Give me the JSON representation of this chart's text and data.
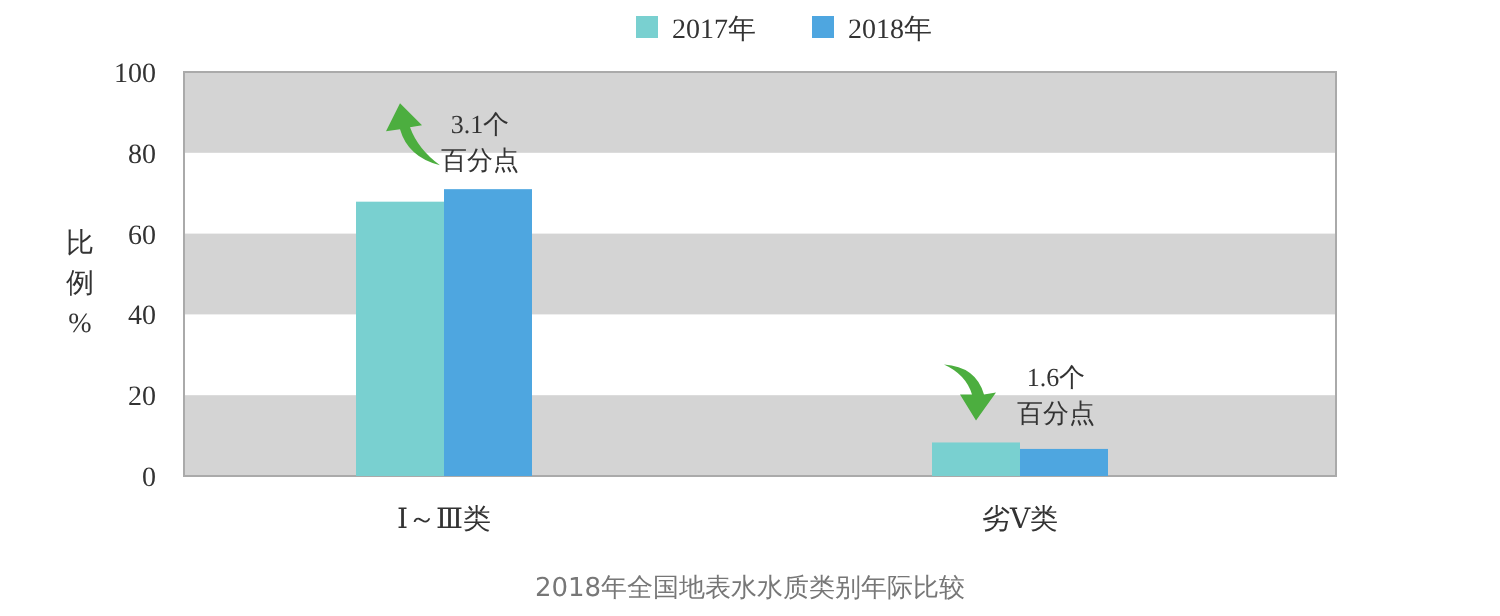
{
  "chart_data": {
    "type": "bar",
    "ylabel": "比例%",
    "categories": [
      "Ⅰ～Ⅲ类",
      "劣Ⅴ类"
    ],
    "series": [
      {
        "name": "2017年",
        "color": "#79d0d0",
        "values": [
          67.9,
          8.3
        ]
      },
      {
        "name": "2018年",
        "color": "#4ea6e0",
        "values": [
          71.0,
          6.7
        ]
      }
    ],
    "ylim": [
      0,
      100
    ],
    "yticks": [
      0,
      20,
      40,
      60,
      80,
      100
    ],
    "legend": "top",
    "bands": [
      {
        "axis": "y",
        "from": 0,
        "to": 20,
        "color": "#d4d4d4"
      },
      {
        "axis": "y",
        "from": 40,
        "to": 60,
        "color": "#d4d4d4"
      },
      {
        "axis": "y",
        "from": 80,
        "to": 100,
        "color": "#d4d4d4"
      }
    ],
    "annotations": [
      "3.1个百分点",
      "1.6个百分点",
      "2018年全国地表水水质类别年际比较"
    ]
  }
}
